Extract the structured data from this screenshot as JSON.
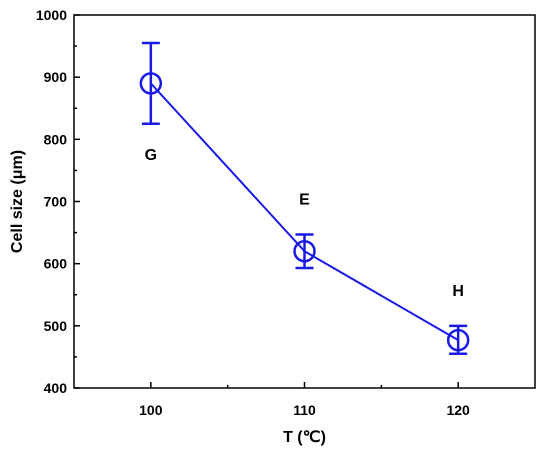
{
  "chart_data": {
    "type": "line",
    "xlabel": "T (℃)",
    "ylabel": "Cell size (μm)",
    "xlim": [
      95,
      125
    ],
    "ylim": [
      400,
      1000
    ],
    "xticks": [
      100,
      110,
      120
    ],
    "yticks": [
      400,
      500,
      600,
      700,
      800,
      900,
      1000
    ],
    "grid": false,
    "series": [
      {
        "x": [
          100,
          110,
          120
        ],
        "y": [
          890,
          620,
          477
        ],
        "error_low": [
          825,
          593,
          455
        ],
        "error_high": [
          955,
          647,
          500
        ],
        "point_labels": [
          "G",
          "E",
          "H"
        ]
      }
    ],
    "colors": {
      "series": "#1a1ae6",
      "axis": "#000000"
    }
  }
}
